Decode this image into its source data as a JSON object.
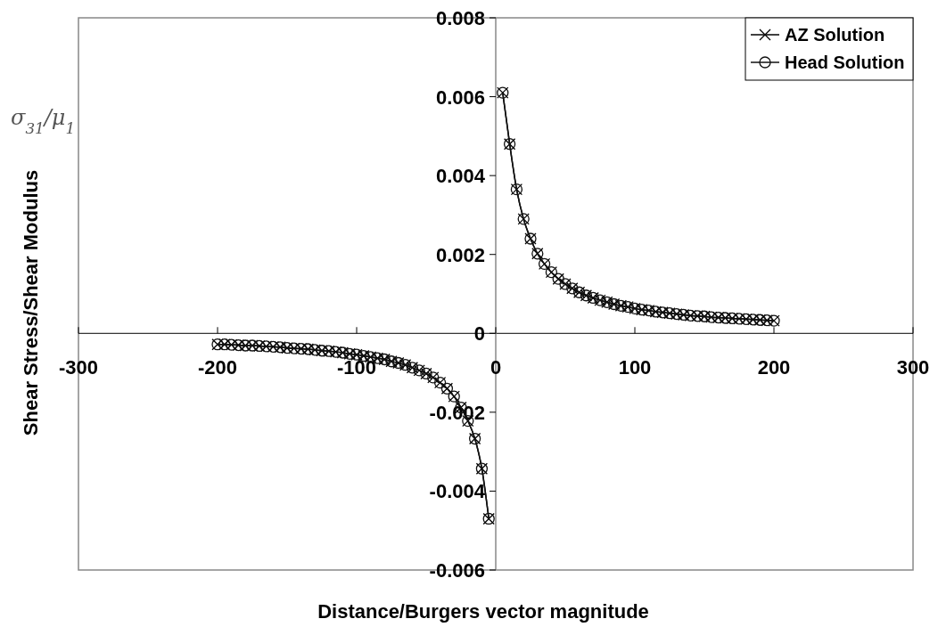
{
  "chart_data": {
    "type": "line",
    "xlabel": "Distance/Burgers vector magnitude",
    "ylabel": "Shear Stress/Shear Modulus",
    "annotations": [
      "σ$_{31}$/μ$_{1}$"
    ],
    "x": [
      -200,
      -195,
      -190,
      -185,
      -180,
      -175,
      -170,
      -165,
      -160,
      -155,
      -150,
      -145,
      -140,
      -135,
      -130,
      -125,
      -120,
      -115,
      -110,
      -105,
      -100,
      -95,
      -90,
      -85,
      -80,
      -75,
      -70,
      -65,
      -60,
      -55,
      -50,
      -45,
      -40,
      -35,
      -30,
      -25,
      -20,
      -15,
      -10,
      -5,
      0,
      5,
      10,
      15,
      20,
      25,
      30,
      35,
      40,
      45,
      50,
      55,
      60,
      65,
      70,
      75,
      80,
      85,
      90,
      95,
      100,
      105,
      110,
      115,
      120,
      125,
      130,
      135,
      140,
      145,
      150,
      155,
      160,
      165,
      170,
      175,
      180,
      185,
      190,
      195,
      200
    ],
    "series": [
      {
        "name": "AZ Solution",
        "color": "#000000",
        "marker": "cross",
        "values": [
          -0.00028,
          -0.00028,
          -0.00029,
          -0.0003,
          -0.00031,
          -0.00031,
          -0.00032,
          -0.00033,
          -0.00034,
          -0.00035,
          -0.00037,
          -0.00038,
          -0.00039,
          -0.0004,
          -0.00042,
          -0.00044,
          -0.00045,
          -0.00047,
          -0.00049,
          -0.00052,
          -0.00054,
          -0.00057,
          -0.0006,
          -0.00063,
          -0.00066,
          -0.00071,
          -0.00075,
          -0.0008,
          -0.00087,
          -0.00094,
          -0.00102,
          -0.00112,
          -0.00125,
          -0.0014,
          -0.0016,
          -0.00188,
          -0.00222,
          -0.00267,
          -0.00343,
          -0.0047,
          null,
          0.0061,
          0.0048,
          0.00365,
          0.0029,
          0.0024,
          0.00202,
          0.00176,
          0.00155,
          0.00138,
          0.00125,
          0.00114,
          0.00104,
          0.00096,
          0.0009,
          0.00084,
          0.00079,
          0.00074,
          0.0007,
          0.00067,
          0.00063,
          0.0006,
          0.00058,
          0.00055,
          0.00053,
          0.00051,
          0.00049,
          0.00047,
          0.00045,
          0.00044,
          0.00043,
          0.00041,
          0.0004,
          0.00039,
          0.00038,
          0.00037,
          0.00036,
          0.00035,
          0.00034,
          0.00033,
          0.00032
        ]
      },
      {
        "name": "Head Solution",
        "color": "#111111",
        "marker": "circle",
        "values": [
          -0.00028,
          -0.00028,
          -0.00029,
          -0.0003,
          -0.00031,
          -0.00031,
          -0.00032,
          -0.00033,
          -0.00034,
          -0.00035,
          -0.00037,
          -0.00038,
          -0.00039,
          -0.0004,
          -0.00042,
          -0.00044,
          -0.00045,
          -0.00047,
          -0.00049,
          -0.00052,
          -0.00054,
          -0.00057,
          -0.0006,
          -0.00063,
          -0.00066,
          -0.00071,
          -0.00075,
          -0.0008,
          -0.00087,
          -0.00094,
          -0.00102,
          -0.00112,
          -0.00125,
          -0.0014,
          -0.0016,
          -0.00188,
          -0.00222,
          -0.00267,
          -0.00343,
          -0.0047,
          null,
          0.0061,
          0.0048,
          0.00365,
          0.0029,
          0.0024,
          0.00202,
          0.00176,
          0.00155,
          0.00138,
          0.00125,
          0.00114,
          0.00104,
          0.00096,
          0.0009,
          0.00084,
          0.00079,
          0.00074,
          0.0007,
          0.00067,
          0.00063,
          0.0006,
          0.00058,
          0.00055,
          0.00053,
          0.00051,
          0.00049,
          0.00047,
          0.00045,
          0.00044,
          0.00043,
          0.00041,
          0.0004,
          0.00039,
          0.00038,
          0.00037,
          0.00036,
          0.00035,
          0.00034,
          0.00033,
          0.00032
        ]
      }
    ],
    "xlim": [
      -300,
      300
    ],
    "xticks": [
      -300,
      -200,
      -100,
      0,
      100,
      200,
      300
    ],
    "ylim": [
      -0.006,
      0.008
    ],
    "yticks": [
      -0.006,
      -0.004,
      -0.002,
      0,
      0.002,
      0.004,
      0.006,
      0.008
    ],
    "grid": false,
    "legend": "top right",
    "line_style": "solid"
  }
}
